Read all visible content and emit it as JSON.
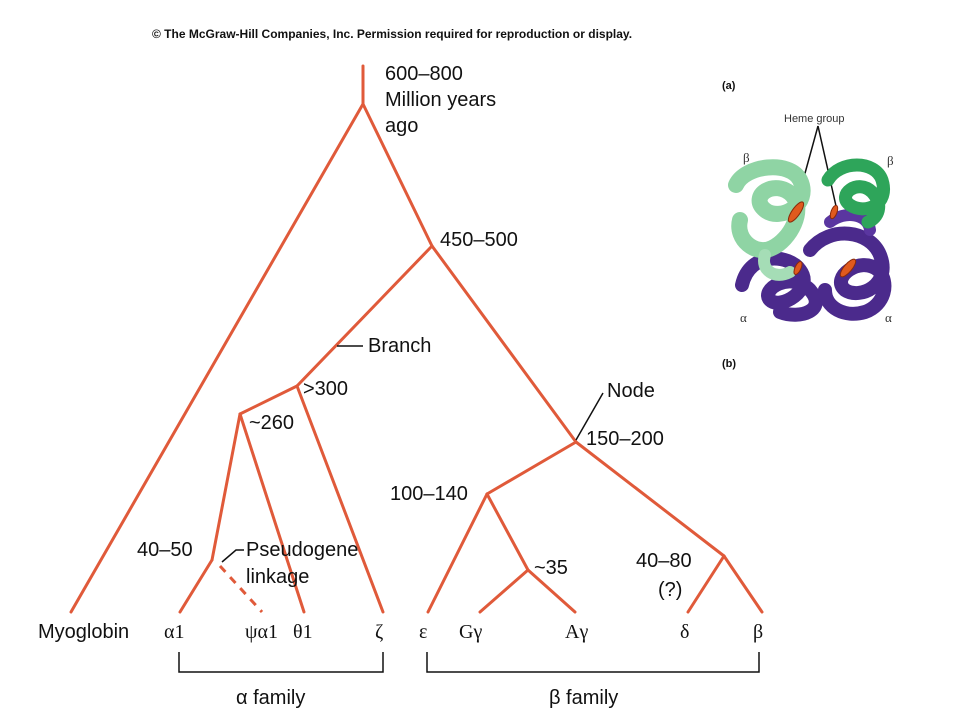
{
  "copyright": "© The McGraw-Hill Companies, Inc.  Permission required for reproduction or display.",
  "root_time": [
    "600–800",
    "Million years",
    "ago"
  ],
  "nodes": {
    "n450": "450–500",
    "n300": ">300",
    "n260": "~260",
    "n150": "150–200",
    "n100": "100–140",
    "n40_50": "40–50",
    "n35": "~35",
    "n40_80": "40–80",
    "n40_80_q": "(?)"
  },
  "annotations": {
    "branch": "Branch",
    "node": "Node",
    "pseudogene": [
      "Pseudogene",
      "linkage"
    ]
  },
  "leaves": {
    "myoglobin": "Myoglobin",
    "alpha1": "α1",
    "psialpha1": "ψα1",
    "theta1": "θ1",
    "zeta": "ζ",
    "epsilon": "ε",
    "ggamma": "Gγ",
    "agamma": "Aγ",
    "delta": "δ",
    "beta": "β"
  },
  "families": {
    "alpha": "α family",
    "beta": "β family"
  },
  "inset": {
    "panel_a": "(a)",
    "panel_b": "(b)",
    "heme_group": "Heme group",
    "beta_left": "β",
    "beta_right": "β",
    "alpha_left": "α",
    "alpha_right": "α",
    "colors": {
      "beta_chain_light": "#8fd4a4",
      "beta_chain_dark": "#2ea55a",
      "alpha_chain": "#4b2a8c",
      "heme": "#e05a1e",
      "branch_line": "#e05a3a"
    }
  }
}
